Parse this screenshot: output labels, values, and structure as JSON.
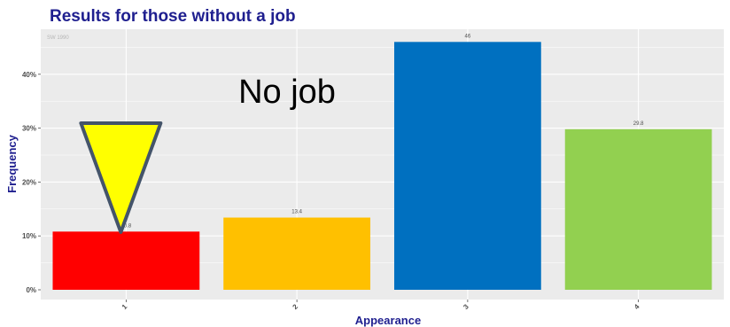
{
  "chart_data": {
    "type": "bar",
    "title": "Results for those without a job",
    "watermark": "SW 1990",
    "xlabel": "Appearance",
    "ylabel": "Frequency",
    "categories": [
      "1",
      "2",
      "3",
      "4"
    ],
    "values": [
      10.8,
      13.4,
      46,
      29.8
    ],
    "data_labels": [
      "10.8",
      "13.4",
      "46",
      "29.8"
    ],
    "colors": [
      "#ff0000",
      "#ffc000",
      "#0070c0",
      "#92d050"
    ],
    "ylim": [
      0,
      48
    ],
    "yticks": [
      0,
      10,
      20,
      30,
      40
    ],
    "ytick_labels": [
      "0%",
      "10%",
      "20%",
      "30%",
      "40%"
    ],
    "grid": true,
    "panel_color": "#ebebeb",
    "title_color": "#1f1f8f",
    "annotation": "No job",
    "marker": {
      "shape": "downward-triangle",
      "fill": "#ffff00",
      "stroke": "#44546a",
      "target_category": "1"
    }
  }
}
